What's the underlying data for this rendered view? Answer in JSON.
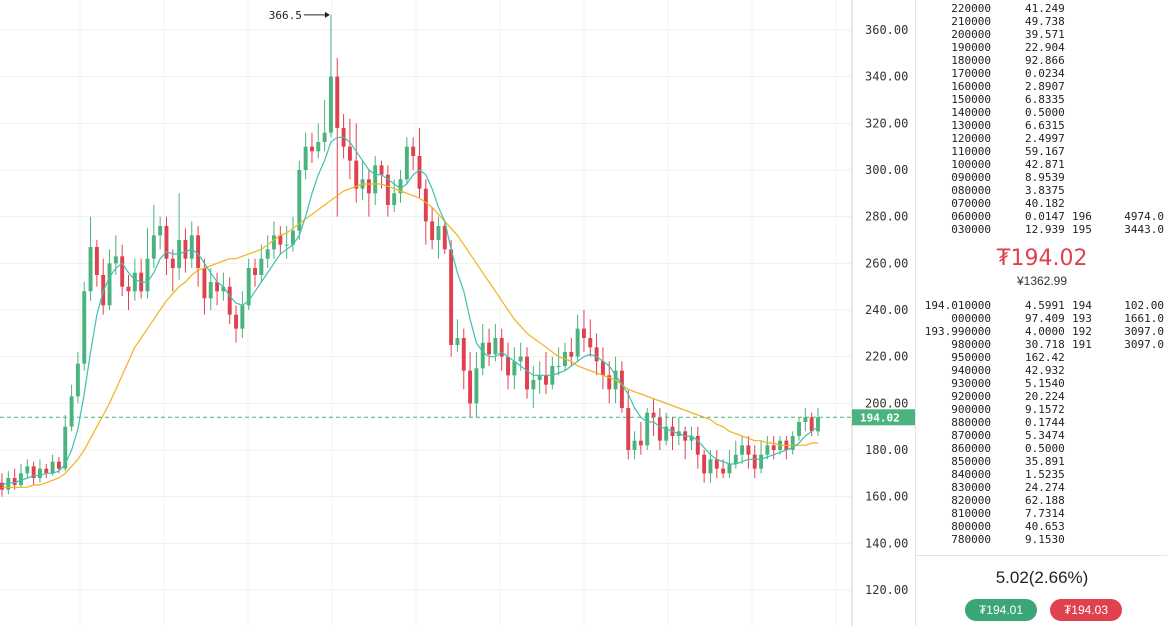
{
  "colors": {
    "up": "#4bb37e",
    "down": "#e0414f",
    "ma_fast": "#3ec1b0",
    "ma_slow": "#f2b21d",
    "current_line": "#4bb37e"
  },
  "chart_data": {
    "type": "candlestick",
    "ylim": [
      110,
      370
    ],
    "y_ticks": [
      "120.00",
      "140.00",
      "160.00",
      "180.00",
      "200.00",
      "220.00",
      "240.00",
      "260.00",
      "280.00",
      "300.00",
      "320.00",
      "340.00",
      "360.00"
    ],
    "peak_label": "366.5",
    "current_price_label": "194.02",
    "current_price": 194.02,
    "candles": [
      [
        166,
        163,
        170,
        160
      ],
      [
        163,
        168,
        171,
        161
      ],
      [
        168,
        165,
        172,
        163
      ],
      [
        165,
        170,
        174,
        164
      ],
      [
        170,
        173,
        176,
        168
      ],
      [
        173,
        168,
        175,
        165
      ],
      [
        168,
        172,
        176,
        166
      ],
      [
        172,
        170,
        174,
        168
      ],
      [
        170,
        175,
        178,
        169
      ],
      [
        175,
        172,
        177,
        170
      ],
      [
        172,
        190,
        195,
        171
      ],
      [
        190,
        203,
        208,
        188
      ],
      [
        203,
        217,
        222,
        200
      ],
      [
        217,
        248,
        252,
        214
      ],
      [
        248,
        267,
        280,
        244
      ],
      [
        267,
        255,
        270,
        250
      ],
      [
        255,
        242,
        262,
        238
      ],
      [
        242,
        260,
        266,
        240
      ],
      [
        260,
        263,
        272,
        255
      ],
      [
        263,
        250,
        268,
        246
      ],
      [
        250,
        248,
        255,
        240
      ],
      [
        248,
        256,
        262,
        244
      ],
      [
        256,
        248,
        262,
        245
      ],
      [
        248,
        262,
        275,
        245
      ],
      [
        262,
        272,
        285,
        258
      ],
      [
        272,
        276,
        280,
        266
      ],
      [
        276,
        262,
        280,
        255
      ],
      [
        262,
        258,
        266,
        248
      ],
      [
        258,
        270,
        290,
        253
      ],
      [
        270,
        262,
        275,
        256
      ],
      [
        262,
        272,
        278,
        258
      ],
      [
        272,
        258,
        276,
        250
      ],
      [
        258,
        245,
        262,
        238
      ],
      [
        245,
        252,
        258,
        240
      ],
      [
        252,
        248,
        256,
        242
      ],
      [
        248,
        250,
        256,
        244
      ],
      [
        250,
        238,
        254,
        234
      ],
      [
        238,
        232,
        242,
        226
      ],
      [
        232,
        242,
        248,
        228
      ],
      [
        242,
        258,
        262,
        240
      ],
      [
        258,
        255,
        262,
        250
      ],
      [
        255,
        262,
        268,
        252
      ],
      [
        262,
        266,
        272,
        258
      ],
      [
        266,
        272,
        278,
        262
      ],
      [
        272,
        268,
        276,
        264
      ],
      [
        268,
        268,
        276,
        262
      ],
      [
        268,
        274,
        280,
        265
      ],
      [
        274,
        300,
        304,
        270
      ],
      [
        300,
        310,
        316,
        296
      ],
      [
        310,
        308,
        316,
        303
      ],
      [
        308,
        312,
        320,
        305
      ],
      [
        312,
        316,
        330,
        308
      ],
      [
        316,
        340,
        366.5,
        314
      ],
      [
        340,
        318,
        348,
        280
      ],
      [
        318,
        310,
        324,
        305
      ],
      [
        310,
        304,
        322,
        296
      ],
      [
        304,
        292,
        320,
        286
      ],
      [
        292,
        296,
        304,
        287
      ],
      [
        296,
        290,
        300,
        280
      ],
      [
        290,
        302,
        306,
        285
      ],
      [
        302,
        298,
        304,
        292
      ],
      [
        298,
        285,
        302,
        280
      ],
      [
        285,
        290,
        296,
        282
      ],
      [
        290,
        296,
        300,
        286
      ],
      [
        296,
        310,
        314,
        294
      ],
      [
        310,
        306,
        314,
        300
      ],
      [
        306,
        292,
        318,
        288
      ],
      [
        292,
        278,
        296,
        268
      ],
      [
        278,
        270,
        284,
        266
      ],
      [
        270,
        276,
        280,
        262
      ],
      [
        276,
        266,
        278,
        264
      ],
      [
        266,
        225,
        270,
        220
      ],
      [
        225,
        228,
        236,
        222
      ],
      [
        228,
        214,
        232,
        206
      ],
      [
        214,
        200,
        222,
        194
      ],
      [
        200,
        215,
        222,
        194
      ],
      [
        215,
        226,
        234,
        212
      ],
      [
        226,
        221,
        232,
        216
      ],
      [
        221,
        228,
        234,
        218
      ],
      [
        228,
        220,
        232,
        214
      ],
      [
        220,
        212,
        226,
        206
      ],
      [
        212,
        218,
        224,
        206
      ],
      [
        218,
        220,
        226,
        214
      ],
      [
        220,
        206,
        224,
        202
      ],
      [
        206,
        210,
        216,
        198
      ],
      [
        210,
        212,
        218,
        204
      ],
      [
        212,
        208,
        222,
        204
      ],
      [
        208,
        216,
        220,
        206
      ],
      [
        216,
        216,
        224,
        212
      ],
      [
        216,
        222,
        226,
        214
      ],
      [
        222,
        220,
        228,
        216
      ],
      [
        220,
        232,
        238,
        218
      ],
      [
        232,
        228,
        240,
        222
      ],
      [
        228,
        224,
        236,
        220
      ],
      [
        224,
        218,
        230,
        212
      ],
      [
        218,
        212,
        224,
        206
      ],
      [
        212,
        206,
        218,
        200
      ],
      [
        206,
        214,
        220,
        200
      ],
      [
        214,
        198,
        218,
        196
      ],
      [
        198,
        180,
        206,
        176
      ],
      [
        180,
        184,
        188,
        176
      ],
      [
        184,
        182,
        192,
        178
      ],
      [
        182,
        196,
        198,
        180
      ],
      [
        196,
        194,
        202,
        186
      ],
      [
        194,
        184,
        198,
        180
      ],
      [
        184,
        190,
        196,
        182
      ],
      [
        190,
        186,
        194,
        180
      ],
      [
        186,
        188,
        194,
        182
      ],
      [
        188,
        184,
        190,
        176
      ],
      [
        184,
        186,
        190,
        180
      ],
      [
        186,
        178,
        190,
        172
      ],
      [
        178,
        170,
        180,
        166
      ],
      [
        170,
        176,
        180,
        166
      ],
      [
        176,
        172,
        180,
        168
      ],
      [
        172,
        170,
        176,
        168
      ],
      [
        170,
        174,
        180,
        168
      ],
      [
        174,
        178,
        184,
        172
      ],
      [
        178,
        182,
        186,
        174
      ],
      [
        182,
        178,
        186,
        172
      ],
      [
        178,
        172,
        182,
        168
      ],
      [
        172,
        178,
        184,
        170
      ],
      [
        178,
        182,
        186,
        176
      ],
      [
        182,
        180,
        186,
        176
      ],
      [
        180,
        184,
        186,
        178
      ],
      [
        184,
        180,
        186,
        176
      ],
      [
        180,
        186,
        188,
        178
      ],
      [
        186,
        192,
        194,
        184
      ],
      [
        192,
        194,
        198,
        188
      ],
      [
        194,
        188,
        196,
        186
      ],
      [
        188,
        194,
        198,
        186
      ]
    ],
    "ma_fast": [
      165,
      166,
      166,
      167,
      168,
      169,
      169,
      170,
      170,
      171,
      174,
      180,
      189,
      204,
      222,
      238,
      248,
      254,
      258,
      260,
      256,
      253,
      252,
      252,
      256,
      262,
      265,
      264,
      264,
      265,
      266,
      264,
      260,
      256,
      252,
      250,
      246,
      243,
      242,
      244,
      248,
      252,
      256,
      260,
      264,
      266,
      268,
      272,
      280,
      290,
      298,
      304,
      312,
      314,
      314,
      312,
      308,
      304,
      300,
      298,
      298,
      296,
      294,
      292,
      294,
      298,
      300,
      298,
      292,
      284,
      278,
      266,
      256,
      248,
      236,
      226,
      222,
      220,
      220,
      222,
      220,
      218,
      216,
      214,
      212,
      212,
      212,
      212,
      213,
      214,
      216,
      218,
      220,
      221,
      220,
      218,
      216,
      212,
      208,
      204,
      198,
      194,
      192,
      192,
      190,
      189,
      188,
      187,
      186,
      186,
      184,
      181,
      178,
      176,
      175,
      174,
      174,
      175,
      176,
      176,
      176,
      177,
      178,
      179,
      180,
      181,
      183,
      186,
      188,
      190
    ],
    "ma_slow": [
      164,
      164,
      164,
      164,
      164,
      165,
      165,
      166,
      167,
      168,
      170,
      173,
      176,
      180,
      185,
      190,
      195,
      200,
      206,
      212,
      218,
      224,
      228,
      232,
      236,
      240,
      244,
      247,
      250,
      252,
      255,
      257,
      258,
      259,
      260,
      261,
      262,
      262,
      263,
      264,
      265,
      266,
      268,
      270,
      272,
      273,
      275,
      277,
      279,
      281,
      283,
      285,
      287,
      289,
      291,
      292,
      293,
      294,
      294,
      294,
      294,
      293,
      292,
      291,
      290,
      289,
      288,
      286,
      284,
      281,
      278,
      275,
      272,
      268,
      264,
      260,
      256,
      252,
      248,
      244,
      240,
      236,
      233,
      230,
      228,
      226,
      224,
      222,
      220,
      219,
      218,
      216,
      215,
      214,
      213,
      212,
      211,
      210,
      208,
      206,
      205,
      204,
      203,
      202,
      201,
      200,
      199,
      198,
      197,
      196,
      195,
      194,
      193,
      191,
      190,
      188,
      187,
      186,
      185,
      184,
      184,
      183,
      183,
      182,
      182,
      182,
      182,
      182,
      183,
      183
    ]
  },
  "orderbook": {
    "asks": [
      {
        "price": "220000",
        "qty": "41.249",
        "lvl": "",
        "total": ""
      },
      {
        "price": "210000",
        "qty": "49.738",
        "lvl": "",
        "total": ""
      },
      {
        "price": "200000",
        "qty": "39.571",
        "lvl": "",
        "total": ""
      },
      {
        "price": "190000",
        "qty": "22.904",
        "lvl": "",
        "total": ""
      },
      {
        "price": "180000",
        "qty": "92.866",
        "lvl": "",
        "total": ""
      },
      {
        "price": "170000",
        "qty": "0.0234",
        "lvl": "",
        "total": ""
      },
      {
        "price": "160000",
        "qty": "2.8907",
        "lvl": "",
        "total": ""
      },
      {
        "price": "150000",
        "qty": "6.8335",
        "lvl": "",
        "total": ""
      },
      {
        "price": "140000",
        "qty": "0.5000",
        "lvl": "",
        "total": ""
      },
      {
        "price": "130000",
        "qty": "6.6315",
        "lvl": "",
        "total": ""
      },
      {
        "price": "120000",
        "qty": "2.4997",
        "lvl": "",
        "total": ""
      },
      {
        "price": "110000",
        "qty": "59.167",
        "lvl": "",
        "total": ""
      },
      {
        "price": "100000",
        "qty": "42.871",
        "lvl": "",
        "total": ""
      },
      {
        "price": "090000",
        "qty": "8.9539",
        "lvl": "",
        "total": ""
      },
      {
        "price": "080000",
        "qty": "3.8375",
        "lvl": "",
        "total": ""
      },
      {
        "price": "070000",
        "qty": "40.182",
        "lvl": "",
        "total": ""
      },
      {
        "price": "060000",
        "qty": "0.0147",
        "lvl": "196",
        "total": "4974.0"
      },
      {
        "price": "030000",
        "qty": "12.939",
        "lvl": "195",
        "total": "3443.0"
      }
    ],
    "mid_price": "₮194.02",
    "mid_sub": "¥1362.99",
    "bids": [
      {
        "price": "194.010000",
        "qty": "4.5991",
        "lvl": "194",
        "total": "102.00"
      },
      {
        "price": "000000",
        "qty": "97.409",
        "lvl": "193",
        "total": "1661.0"
      },
      {
        "price": "193.990000",
        "qty": "4.0000",
        "lvl": "192",
        "total": "3097.0"
      },
      {
        "price": "980000",
        "qty": "30.718",
        "lvl": "191",
        "total": "3097.0"
      },
      {
        "price": "950000",
        "qty": "162.42",
        "lvl": "",
        "total": ""
      },
      {
        "price": "940000",
        "qty": "42.932",
        "lvl": "",
        "total": ""
      },
      {
        "price": "930000",
        "qty": "5.1540",
        "lvl": "",
        "total": ""
      },
      {
        "price": "920000",
        "qty": "20.224",
        "lvl": "",
        "total": ""
      },
      {
        "price": "900000",
        "qty": "9.1572",
        "lvl": "",
        "total": ""
      },
      {
        "price": "880000",
        "qty": "0.1744",
        "lvl": "",
        "total": ""
      },
      {
        "price": "870000",
        "qty": "5.3474",
        "lvl": "",
        "total": ""
      },
      {
        "price": "860000",
        "qty": "0.5000",
        "lvl": "",
        "total": ""
      },
      {
        "price": "850000",
        "qty": "35.891",
        "lvl": "",
        "total": ""
      },
      {
        "price": "840000",
        "qty": "1.5235",
        "lvl": "",
        "total": ""
      },
      {
        "price": "830000",
        "qty": "24.274",
        "lvl": "",
        "total": ""
      },
      {
        "price": "820000",
        "qty": "62.188",
        "lvl": "",
        "total": ""
      },
      {
        "price": "810000",
        "qty": "7.7314",
        "lvl": "",
        "total": ""
      },
      {
        "price": "800000",
        "qty": "40.653",
        "lvl": "",
        "total": ""
      },
      {
        "price": "780000",
        "qty": "9.1530",
        "lvl": "",
        "total": ""
      }
    ],
    "change": "5.02(2.66%)",
    "bid_button": "₮194.01",
    "ask_button": "₮194.03"
  }
}
